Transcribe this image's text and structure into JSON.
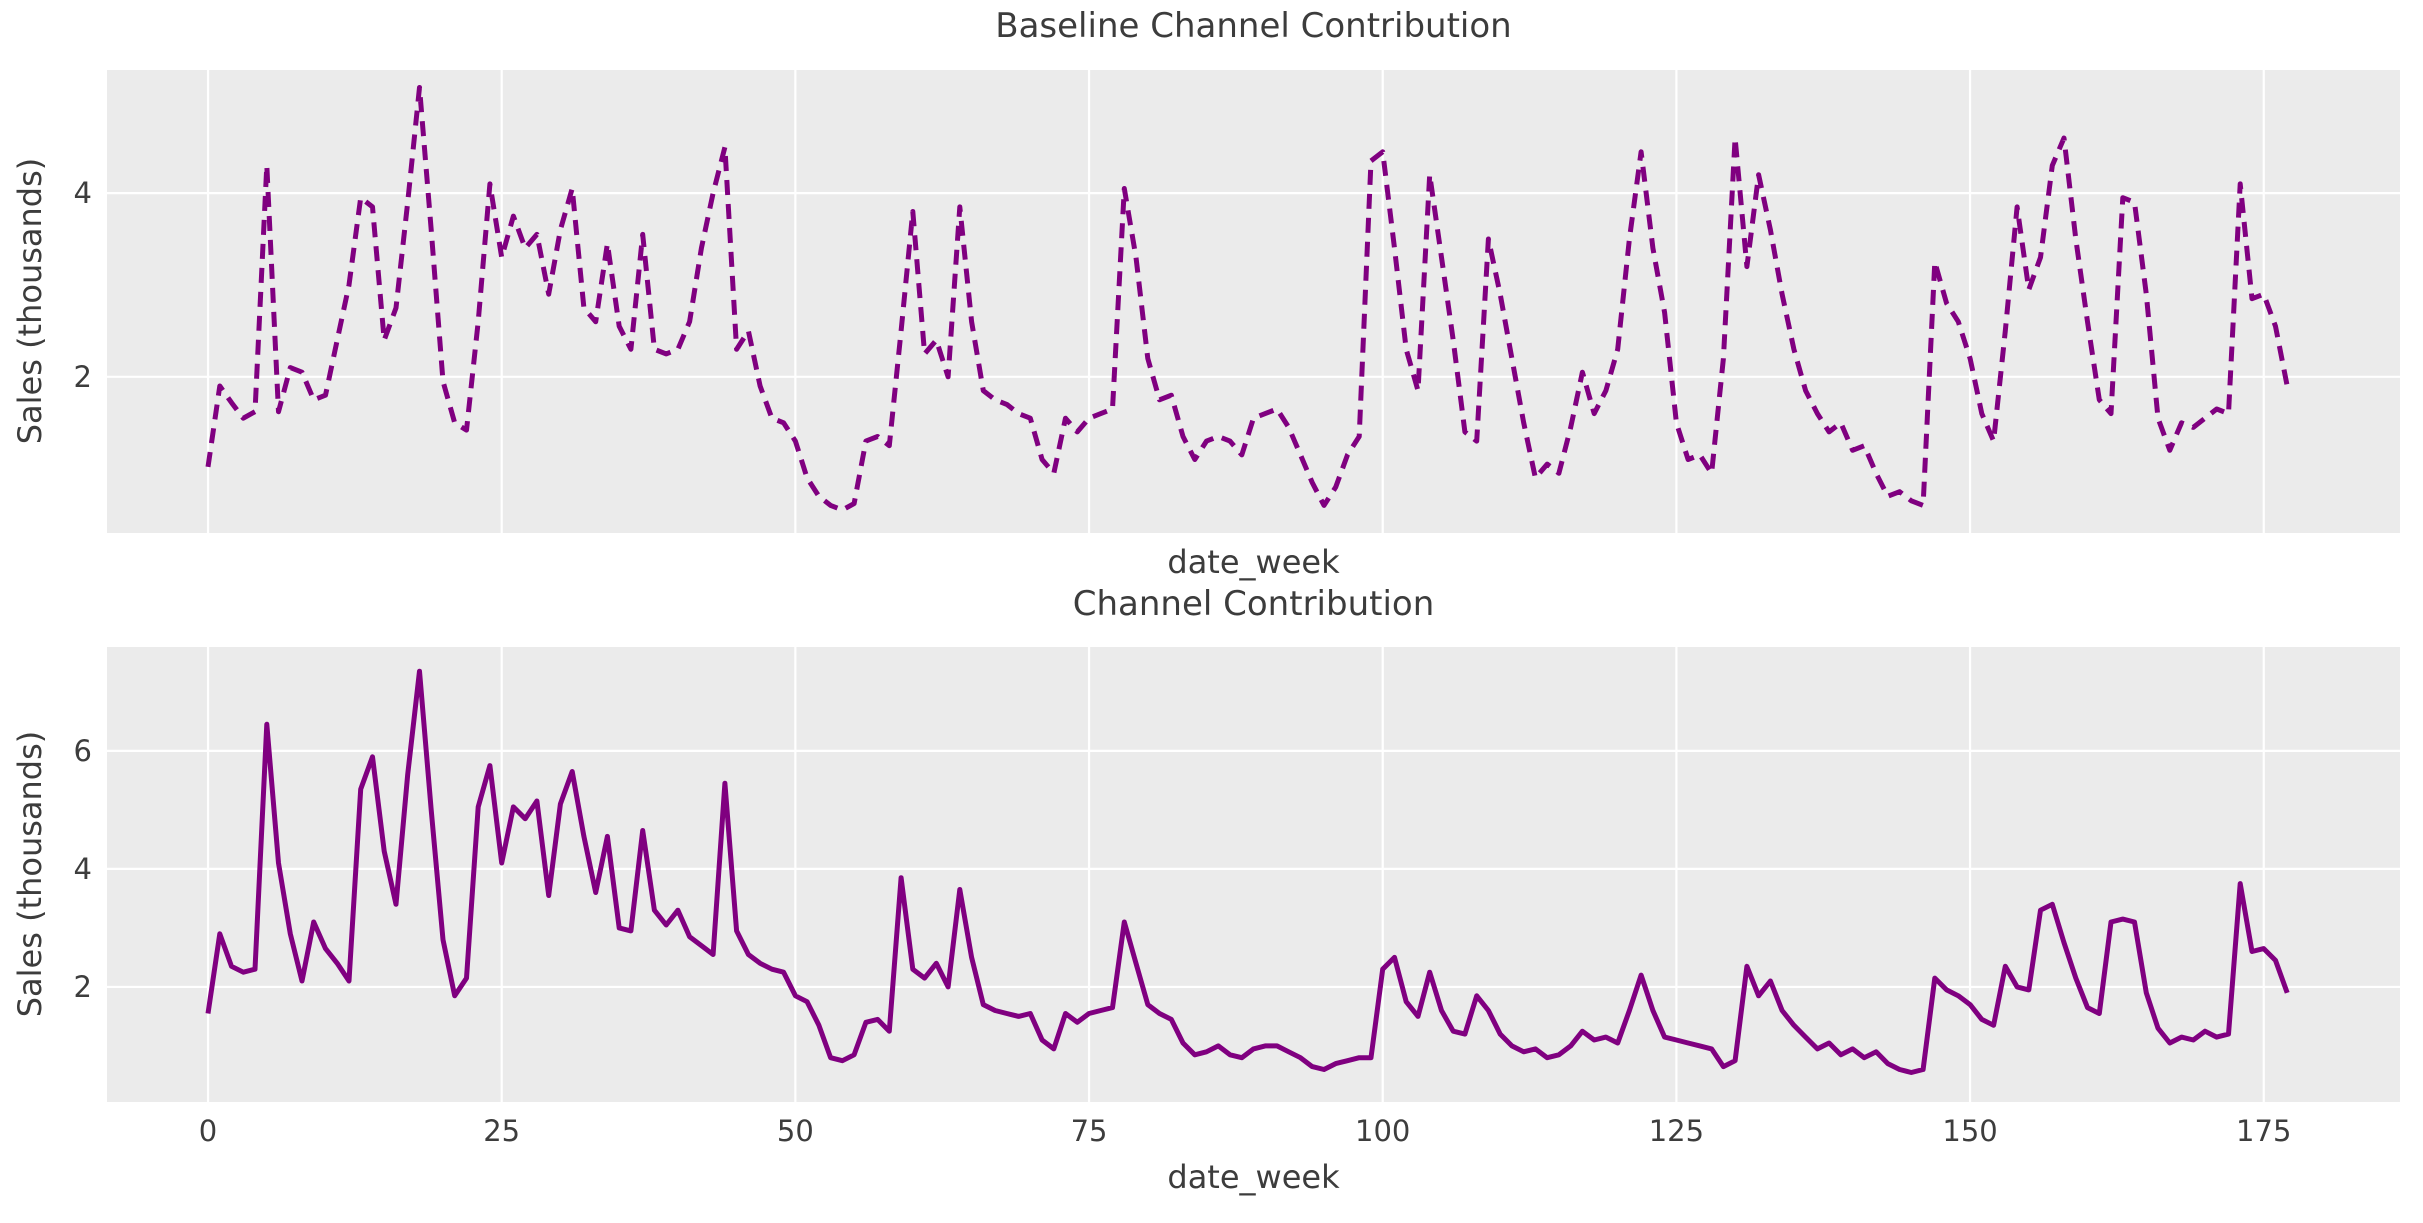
{
  "figure": {
    "background": "#ffffff",
    "axes_background": "#ebebeb",
    "grid_color": "#ffffff",
    "text_color": "#3d3d3d",
    "line_color": "#800080"
  },
  "chart_data": [
    {
      "type": "line",
      "title": "Baseline Channel Contribution",
      "xlabel": "date_week",
      "ylabel": "Sales (thousands)",
      "line_style": "dashed",
      "grid": true,
      "legend": "none",
      "x_start": 0,
      "x_step": 1,
      "x_ticks": [
        0,
        25,
        50,
        75,
        100,
        125,
        150,
        175
      ],
      "y_ticks": [
        2,
        4
      ],
      "xlim": [
        -8.6,
        186.6
      ],
      "ylim": [
        0.3,
        5.34
      ],
      "values": [
        1.02,
        1.9,
        1.72,
        1.55,
        1.62,
        4.3,
        1.62,
        2.1,
        2.05,
        1.75,
        1.8,
        2.4,
        3.0,
        3.95,
        3.85,
        2.4,
        2.75,
        3.9,
        5.15,
        3.6,
        1.95,
        1.5,
        1.42,
        2.6,
        4.1,
        3.3,
        3.75,
        3.4,
        3.55,
        2.9,
        3.6,
        4.05,
        2.75,
        2.6,
        3.45,
        2.55,
        2.3,
        3.55,
        2.3,
        2.25,
        2.3,
        2.6,
        3.4,
        4.0,
        4.5,
        2.3,
        2.5,
        1.9,
        1.55,
        1.5,
        1.3,
        0.9,
        0.7,
        0.6,
        0.55,
        0.62,
        1.3,
        1.35,
        1.25,
        2.5,
        3.8,
        2.25,
        2.4,
        2.0,
        3.85,
        2.6,
        1.85,
        1.75,
        1.7,
        1.6,
        1.55,
        1.1,
        0.95,
        1.55,
        1.4,
        1.55,
        1.6,
        1.65,
        4.05,
        3.3,
        2.2,
        1.75,
        1.8,
        1.35,
        1.1,
        1.3,
        1.35,
        1.3,
        1.15,
        1.55,
        1.6,
        1.65,
        1.45,
        1.15,
        0.85,
        0.6,
        0.8,
        1.15,
        1.35,
        4.35,
        4.45,
        3.4,
        2.3,
        1.85,
        4.2,
        3.3,
        2.4,
        1.4,
        1.3,
        3.5,
        2.9,
        2.2,
        1.5,
        0.9,
        1.05,
        0.95,
        1.45,
        2.05,
        1.6,
        1.85,
        2.3,
        3.5,
        4.45,
        3.4,
        2.7,
        1.5,
        1.1,
        1.15,
        0.95,
        2.2,
        4.6,
        3.2,
        4.2,
        3.6,
        2.9,
        2.3,
        1.85,
        1.6,
        1.4,
        1.5,
        1.2,
        1.25,
        0.95,
        0.7,
        0.75,
        0.65,
        0.6,
        3.25,
        2.8,
        2.6,
        2.2,
        1.6,
        1.3,
        2.5,
        3.85,
        2.95,
        3.3,
        4.3,
        4.6,
        3.5,
        2.6,
        1.75,
        1.6,
        3.95,
        3.9,
        2.9,
        1.55,
        1.2,
        1.5,
        1.45,
        1.55,
        1.65,
        1.6,
        4.1,
        2.85,
        2.9,
        2.55,
        1.9
      ]
    },
    {
      "type": "line",
      "title": "Channel Contribution",
      "xlabel": "date_week",
      "ylabel": "Sales (thousands)",
      "line_style": "solid",
      "grid": true,
      "legend": "none",
      "x_start": 0,
      "x_step": 1,
      "x_ticks": [
        0,
        25,
        50,
        75,
        100,
        125,
        150,
        175
      ],
      "y_ticks": [
        2,
        4,
        6
      ],
      "xlim": [
        -8.6,
        186.6
      ],
      "ylim": [
        0.05,
        7.76
      ],
      "values": [
        1.55,
        2.9,
        2.35,
        2.25,
        2.3,
        6.45,
        4.1,
        2.9,
        2.1,
        3.1,
        2.65,
        2.4,
        2.1,
        5.35,
        5.9,
        4.3,
        3.4,
        5.6,
        7.35,
        5.0,
        2.8,
        1.85,
        2.15,
        5.05,
        5.75,
        4.1,
        5.05,
        4.85,
        5.15,
        3.55,
        5.1,
        5.65,
        4.55,
        3.6,
        4.55,
        3.0,
        2.95,
        4.65,
        3.3,
        3.05,
        3.3,
        2.85,
        2.7,
        2.55,
        5.45,
        2.95,
        2.55,
        2.4,
        2.3,
        2.25,
        1.85,
        1.75,
        1.35,
        0.8,
        0.75,
        0.85,
        1.4,
        1.45,
        1.25,
        3.85,
        2.3,
        2.15,
        2.4,
        2.0,
        3.65,
        2.5,
        1.7,
        1.6,
        1.55,
        1.5,
        1.55,
        1.1,
        0.95,
        1.55,
        1.4,
        1.55,
        1.6,
        1.65,
        3.1,
        2.4,
        1.7,
        1.55,
        1.45,
        1.05,
        0.85,
        0.9,
        1.0,
        0.85,
        0.8,
        0.95,
        1.0,
        1.0,
        0.9,
        0.8,
        0.65,
        0.6,
        0.7,
        0.75,
        0.8,
        0.8,
        2.3,
        2.5,
        1.75,
        1.5,
        2.25,
        1.6,
        1.25,
        1.2,
        1.85,
        1.6,
        1.2,
        1.0,
        0.9,
        0.95,
        0.8,
        0.85,
        1.0,
        1.25,
        1.1,
        1.15,
        1.05,
        1.6,
        2.2,
        1.6,
        1.15,
        1.1,
        1.05,
        1.0,
        0.95,
        0.65,
        0.75,
        2.35,
        1.85,
        2.1,
        1.6,
        1.35,
        1.15,
        0.95,
        1.05,
        0.85,
        0.95,
        0.8,
        0.9,
        0.7,
        0.6,
        0.55,
        0.6,
        2.15,
        1.95,
        1.85,
        1.7,
        1.45,
        1.35,
        2.35,
        2.0,
        1.95,
        3.3,
        3.4,
        2.75,
        2.15,
        1.65,
        1.55,
        3.1,
        3.15,
        3.1,
        1.9,
        1.3,
        1.05,
        1.15,
        1.1,
        1.25,
        1.15,
        1.2,
        3.75,
        2.6,
        2.65,
        2.45,
        1.9
      ]
    }
  ]
}
